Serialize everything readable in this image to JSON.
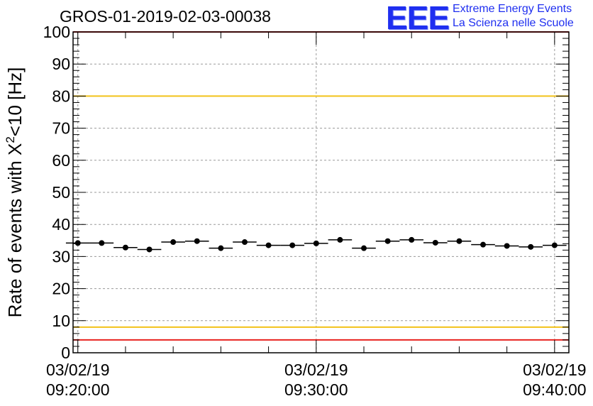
{
  "title": "GROS-01-2019-02-03-00038",
  "logo": {
    "mark": "EEE",
    "line1": "Extreme Energy Events",
    "line2": "La Scienza nelle Scuole"
  },
  "colors": {
    "accent_logo": "#1f2ff0",
    "limit_red": "#e8231f",
    "limit_yellow": "#f2c21a",
    "markers": "#000000"
  },
  "chart_data": {
    "type": "scatter",
    "ylabel_main": "Rate of events with X",
    "ylabel_sup": "2",
    "ylabel_tail": "<10 [Hz]",
    "ylim": [
      0,
      100
    ],
    "yticks": [
      "0",
      "10",
      "20",
      "30",
      "40",
      "50",
      "60",
      "70",
      "80",
      "90",
      "100"
    ],
    "xticks": [
      {
        "date": "03/02/19",
        "time": "09:20:00",
        "minute": 0
      },
      {
        "date": "03/02/19",
        "time": "09:30:00",
        "minute": 10
      },
      {
        "date": "03/02/19",
        "time": "09:40:00",
        "minute": 20
      }
    ],
    "xlim_minutes": [
      -0.2,
      20.6
    ],
    "bin_width_minutes": 1,
    "grid": true,
    "reference_lines": [
      {
        "y": 100,
        "color": "red"
      },
      {
        "y": 80,
        "color": "yellow"
      },
      {
        "y": 8,
        "color": "yellow"
      },
      {
        "y": 4,
        "color": "red"
      }
    ],
    "series": [
      {
        "x_minutes": [
          0,
          1,
          2,
          3,
          4,
          5,
          6,
          7,
          8,
          9,
          10,
          11,
          12,
          13,
          14,
          15,
          16,
          17,
          18,
          19,
          20
        ],
        "values": [
          34.2,
          34.2,
          32.8,
          32.2,
          34.5,
          34.8,
          32.6,
          34.5,
          33.5,
          33.5,
          34.1,
          35.2,
          32.6,
          34.8,
          35.2,
          34.3,
          34.8,
          33.7,
          33.3,
          33.0,
          33.5
        ]
      }
    ]
  }
}
